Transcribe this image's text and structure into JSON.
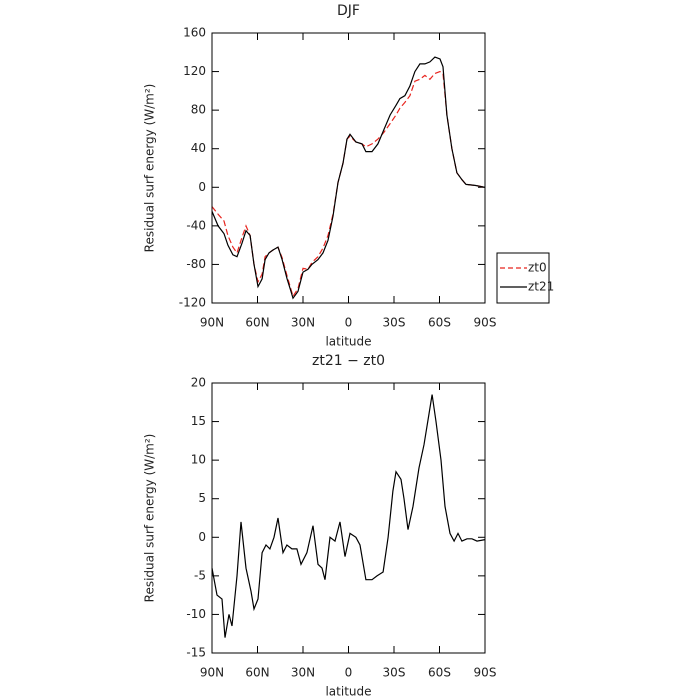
{
  "chart_data": [
    {
      "type": "line",
      "title": "DJF",
      "xlabel": "latitude",
      "ylabel": "Residual surf energy (W/m²)",
      "x": [
        90,
        86.0,
        82.1,
        79.5,
        76.2,
        73.5,
        70.2,
        67.6,
        64.9,
        62.3,
        59.7,
        57.0,
        55.0,
        52.4,
        49.8,
        46.5,
        43.8,
        40.5,
        37.9,
        36.6,
        33.3,
        30.0,
        26.7,
        24.1,
        20.1,
        16.8,
        13.5,
        10.2,
        6.9,
        3.6,
        1.0,
        -1.0,
        -4.9,
        -8.9,
        -11.5,
        -15.5,
        -19.4,
        -23.4,
        -27.4,
        -31.3,
        -33.9,
        -37.2,
        -40.5,
        -43.8,
        -47.1,
        -50.4,
        -53.7,
        -57.0,
        -60.3,
        -62.3,
        -64.9,
        -68.2,
        -71.5,
        -74.8,
        -77.5,
        -83.4,
        -90
      ],
      "series": [
        {
          "name": "zt0",
          "color": "#e8251f",
          "linestyle": "dashed",
          "values": [
            -20,
            -28,
            -35,
            -50,
            -62,
            -68,
            -52,
            -40,
            -50,
            -80,
            -98,
            -90,
            -72,
            -68,
            -65,
            -62,
            -73,
            -92,
            -106,
            -113,
            -105,
            -84,
            -85,
            -78,
            -72,
            -63,
            -50,
            -28,
            5,
            25,
            50,
            53,
            47,
            45,
            42,
            45,
            50,
            57,
            66,
            75,
            82,
            88,
            95,
            110,
            112,
            116,
            112,
            118,
            120,
            118,
            75,
            40,
            15,
            8,
            3,
            2,
            0
          ]
        },
        {
          "name": "zt21",
          "color": "#000000",
          "linestyle": "solid",
          "values": [
            -25,
            -40,
            -48,
            -60,
            -70,
            -72,
            -58,
            -45,
            -50,
            -80,
            -103,
            -95,
            -75,
            -68,
            -65,
            -62,
            -75,
            -95,
            -108,
            -115,
            -108,
            -88,
            -85,
            -80,
            -75,
            -68,
            -55,
            -30,
            5,
            25,
            50,
            55,
            47,
            45,
            37,
            37,
            45,
            60,
            75,
            85,
            92,
            95,
            105,
            120,
            128,
            128,
            130,
            135,
            133,
            125,
            75,
            40,
            15,
            8,
            3,
            2,
            0
          ]
        }
      ],
      "xlim": [
        90,
        -90
      ],
      "xticks": [
        {
          "value": 90,
          "label": "90N"
        },
        {
          "value": 60,
          "label": "60N"
        },
        {
          "value": 30,
          "label": "30N"
        },
        0,
        {
          "value": -30,
          "label": "30S"
        },
        {
          "value": -60,
          "label": "60S"
        },
        {
          "value": -90,
          "label": "90S"
        }
      ],
      "ylim": [
        -120,
        160
      ],
      "yticks": [
        -120,
        -80,
        -40,
        0,
        40,
        80,
        120,
        160
      ],
      "legend": "right"
    },
    {
      "type": "line",
      "title": "zt21 − zt0",
      "xlabel": "latitude",
      "ylabel": "Residual surf energy (W/m²)",
      "x": [
        90,
        86.7,
        83.4,
        81.4,
        78.8,
        76.8,
        73.5,
        70.9,
        67.6,
        64.3,
        62.3,
        59.7,
        57.0,
        54.4,
        51.8,
        49.1,
        46.5,
        43.2,
        40.6,
        37.3,
        34.0,
        31.3,
        27.4,
        23.4,
        20.1,
        17.5,
        15.5,
        12.2,
        8.9,
        5.6,
        2.3,
        -1.0,
        -4.9,
        -7.6,
        -11.5,
        -15.5,
        -18.8,
        -22.8,
        -26.1,
        -29.3,
        -31.3,
        -34.6,
        -36.6,
        -39.2,
        -42.5,
        -46.5,
        -49.8,
        -53.1,
        -55.1,
        -57.7,
        -61.0,
        -63.6,
        -66.9,
        -69.6,
        -72.2,
        -74.8,
        -78.1,
        -81.4,
        -84.7,
        -90
      ],
      "series": [
        {
          "color": "#000000",
          "linestyle": "solid",
          "values": [
            -4,
            -7.5,
            -8,
            -13,
            -10,
            -11.5,
            -5,
            2,
            -4,
            -7,
            -9.3,
            -8,
            -2,
            -1,
            -1.5,
            0,
            2.5,
            -2,
            -1,
            -1.5,
            -1.5,
            -3.5,
            -2,
            1.5,
            -3.5,
            -4,
            -5.5,
            0,
            -0.5,
            2,
            -2.5,
            0.5,
            0,
            -1,
            -5.5,
            -5.5,
            -5,
            -4.5,
            0,
            6,
            8.5,
            7.5,
            5,
            1,
            4,
            9,
            12,
            16,
            18.5,
            15,
            10,
            4,
            0.5,
            -0.5,
            0.5,
            -0.5,
            -0.2,
            -0.2,
            -0.5,
            -0.3
          ]
        }
      ],
      "xlim": [
        90,
        -90
      ],
      "xticks": [
        {
          "value": 90,
          "label": "90N"
        },
        {
          "value": 60,
          "label": "60N"
        },
        {
          "value": 30,
          "label": "30N"
        },
        0,
        {
          "value": -30,
          "label": "30S"
        },
        {
          "value": -60,
          "label": "60S"
        },
        {
          "value": -90,
          "label": "90S"
        }
      ],
      "ylim": [
        -15,
        20
      ],
      "yticks": [
        -15,
        -10,
        -5,
        0,
        5,
        10,
        15,
        20
      ]
    }
  ]
}
